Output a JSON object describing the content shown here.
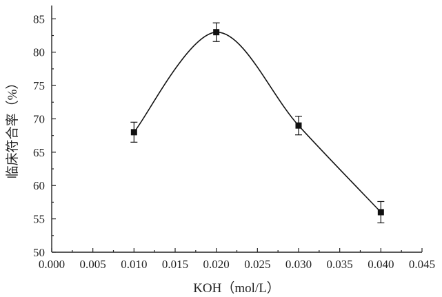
{
  "chart_data": {
    "type": "line",
    "title": "",
    "xlabel": "KOH（mol/L）",
    "ylabel": "临床符合率（%）",
    "xlim": [
      0.0,
      0.045
    ],
    "ylim": [
      50,
      87
    ],
    "x_ticks": [
      "0.000",
      "0.005",
      "0.010",
      "0.015",
      "0.020",
      "0.025",
      "0.030",
      "0.035",
      "0.040",
      "0.045"
    ],
    "y_ticks": [
      "50",
      "55",
      "60",
      "65",
      "70",
      "75",
      "80",
      "85"
    ],
    "grid": false,
    "legend": "none",
    "smooth": true,
    "series": [
      {
        "x": [
          0.01,
          0.02,
          0.03,
          0.04
        ],
        "y": [
          68.0,
          83.0,
          69.0,
          56.0
        ],
        "error": [
          1.5,
          1.4,
          1.4,
          1.6
        ],
        "marker": "square",
        "color": "#111111"
      }
    ]
  }
}
